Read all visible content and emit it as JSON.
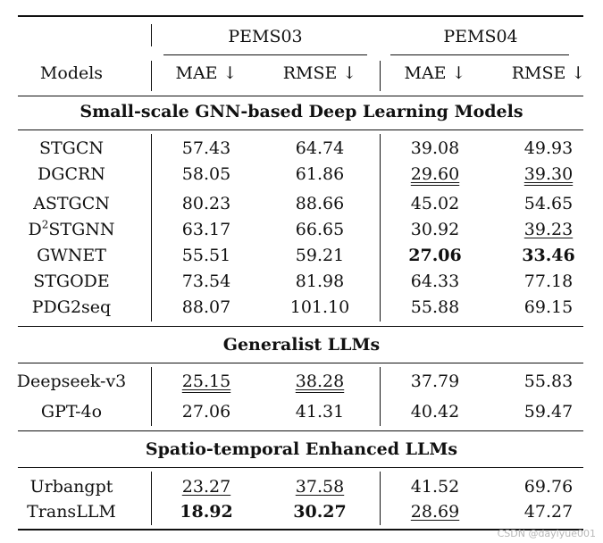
{
  "header": {
    "models_label": "Models",
    "group1": "PEMS03",
    "group2": "PEMS04",
    "mae": "MAE ↓",
    "rmse": "RMSE ↓"
  },
  "sections": [
    {
      "title": "Small-scale GNN-based Deep Learning Models"
    },
    {
      "title": "Generalist LLMs"
    },
    {
      "title": "Spatio-temporal Enhanced LLMs"
    }
  ],
  "rows": [
    {
      "model": "STGCN",
      "cells": [
        "57.43",
        "64.74",
        "39.08",
        "49.93"
      ]
    },
    {
      "model": "DGCRN",
      "cells": [
        "58.05",
        "61.86",
        "29.60",
        "39.30"
      ]
    },
    {
      "model": "ASTGCN",
      "cells": [
        "80.23",
        "88.66",
        "45.02",
        "54.65"
      ]
    },
    {
      "model_prefix": "D",
      "model_sup": "2",
      "model_suffix": "STGNN",
      "cells": [
        "63.17",
        "66.65",
        "30.92",
        "39.23"
      ]
    },
    {
      "model": "GWNET",
      "cells": [
        "55.51",
        "59.21",
        "27.06",
        "33.46"
      ]
    },
    {
      "model": "STGODE",
      "cells": [
        "73.54",
        "81.98",
        "64.33",
        "77.18"
      ]
    },
    {
      "model": "PDG2seq",
      "cells": [
        "88.07",
        "101.10",
        "55.88",
        "69.15"
      ]
    },
    {
      "model": "Deepseek-v3",
      "cells": [
        "25.15",
        "38.28",
        "37.79",
        "55.83"
      ]
    },
    {
      "model": "GPT-4o",
      "cells": [
        "27.06",
        "41.31",
        "40.42",
        "59.47"
      ]
    },
    {
      "model": "Urbangpt",
      "cells": [
        "23.27",
        "37.58",
        "41.52",
        "69.76"
      ]
    },
    {
      "model": "TransLLM",
      "cells": [
        "18.92",
        "30.27",
        "28.69",
        "47.27"
      ]
    }
  ],
  "watermark": "CSDN @dayiyue001"
}
